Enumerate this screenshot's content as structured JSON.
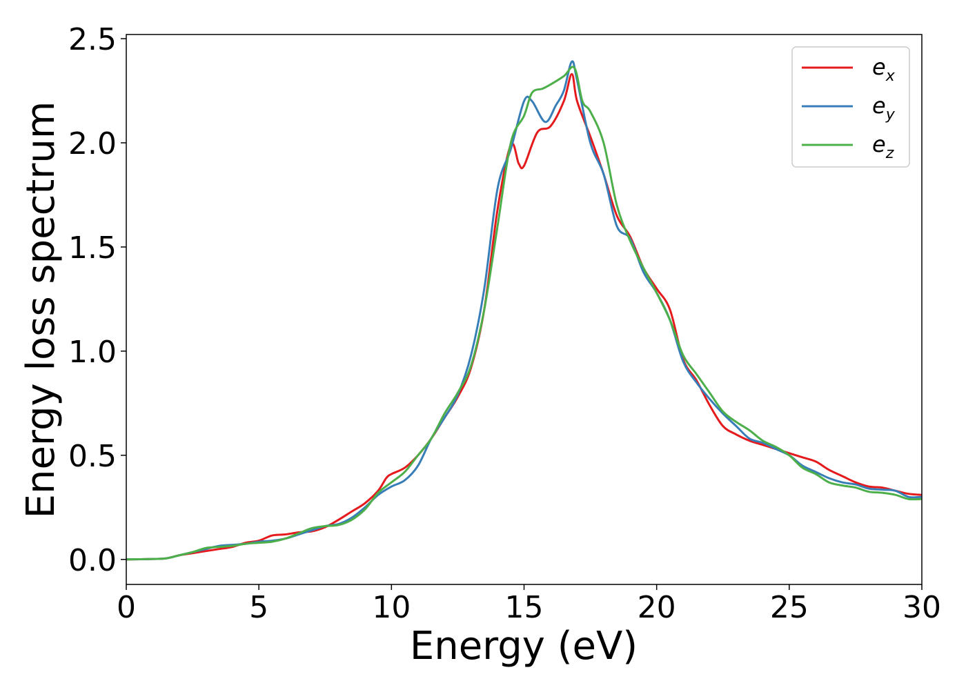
{
  "chart_data": {
    "type": "line",
    "title": "",
    "xlabel": "Energy (eV)",
    "ylabel": "Energy loss spectrum",
    "xlim": [
      0,
      30
    ],
    "ylim": [
      -0.12,
      2.52
    ],
    "xticks": [
      0,
      5,
      10,
      15,
      20,
      25,
      30
    ],
    "xtick_labels": [
      "0",
      "5",
      "10",
      "15",
      "20",
      "25",
      "30"
    ],
    "yticks": [
      0.0,
      0.5,
      1.0,
      1.5,
      2.0,
      2.5
    ],
    "ytick_labels": [
      "0.0",
      "0.5",
      "1.0",
      "1.5",
      "2.0",
      "2.5"
    ],
    "grid": false,
    "legend_position": "top-right",
    "series": [
      {
        "name": "e_x",
        "base": "e",
        "subscript": "x",
        "color": "#e41a1c",
        "points": [
          [
            0,
            0
          ],
          [
            1,
            0.002
          ],
          [
            1.5,
            0.005
          ],
          [
            2,
            0.02
          ],
          [
            2.5,
            0.03
          ],
          [
            3,
            0.04
          ],
          [
            3.5,
            0.05
          ],
          [
            4,
            0.06
          ],
          [
            4.5,
            0.08
          ],
          [
            5,
            0.09
          ],
          [
            5.5,
            0.115
          ],
          [
            6,
            0.12
          ],
          [
            6.5,
            0.13
          ],
          [
            7,
            0.135
          ],
          [
            7.5,
            0.155
          ],
          [
            8,
            0.19
          ],
          [
            8.5,
            0.23
          ],
          [
            9,
            0.27
          ],
          [
            9.5,
            0.33
          ],
          [
            9.8,
            0.39
          ],
          [
            10,
            0.41
          ],
          [
            10.5,
            0.44
          ],
          [
            11,
            0.5
          ],
          [
            11.5,
            0.58
          ],
          [
            12,
            0.68
          ],
          [
            12.5,
            0.78
          ],
          [
            13,
            0.92
          ],
          [
            13.5,
            1.2
          ],
          [
            14,
            1.68
          ],
          [
            14.5,
            1.99
          ],
          [
            14.8,
            1.9
          ],
          [
            15,
            1.89
          ],
          [
            15.5,
            2.05
          ],
          [
            16,
            2.08
          ],
          [
            16.5,
            2.2
          ],
          [
            16.8,
            2.33
          ],
          [
            17,
            2.2
          ],
          [
            17.5,
            2.03
          ],
          [
            18,
            1.85
          ],
          [
            18.5,
            1.65
          ],
          [
            19,
            1.55
          ],
          [
            19.5,
            1.4
          ],
          [
            20,
            1.3
          ],
          [
            20.5,
            1.2
          ],
          [
            21,
            0.96
          ],
          [
            21.5,
            0.86
          ],
          [
            22,
            0.74
          ],
          [
            22.5,
            0.64
          ],
          [
            23,
            0.6
          ],
          [
            23.5,
            0.57
          ],
          [
            24,
            0.55
          ],
          [
            24.5,
            0.53
          ],
          [
            25,
            0.51
          ],
          [
            25.5,
            0.49
          ],
          [
            26,
            0.47
          ],
          [
            26.5,
            0.43
          ],
          [
            27,
            0.4
          ],
          [
            27.5,
            0.37
          ],
          [
            28,
            0.35
          ],
          [
            28.5,
            0.345
          ],
          [
            29,
            0.33
          ],
          [
            29.5,
            0.315
          ],
          [
            30,
            0.31
          ]
        ]
      },
      {
        "name": "e_y",
        "base": "e",
        "subscript": "y",
        "color": "#377eb8",
        "points": [
          [
            0,
            0
          ],
          [
            1,
            0.002
          ],
          [
            1.5,
            0.005
          ],
          [
            2,
            0.02
          ],
          [
            2.5,
            0.035
          ],
          [
            3,
            0.05
          ],
          [
            3.5,
            0.065
          ],
          [
            4,
            0.07
          ],
          [
            4.5,
            0.075
          ],
          [
            5,
            0.085
          ],
          [
            5.5,
            0.09
          ],
          [
            6,
            0.1
          ],
          [
            6.5,
            0.12
          ],
          [
            7,
            0.14
          ],
          [
            7.5,
            0.16
          ],
          [
            8,
            0.17
          ],
          [
            8.5,
            0.2
          ],
          [
            9,
            0.25
          ],
          [
            9.5,
            0.31
          ],
          [
            10,
            0.35
          ],
          [
            10.5,
            0.38
          ],
          [
            11,
            0.45
          ],
          [
            11.5,
            0.58
          ],
          [
            12,
            0.68
          ],
          [
            12.5,
            0.79
          ],
          [
            13,
            0.98
          ],
          [
            13.5,
            1.3
          ],
          [
            14,
            1.78
          ],
          [
            14.5,
            1.97
          ],
          [
            15,
            2.2
          ],
          [
            15.3,
            2.2
          ],
          [
            15.8,
            2.1
          ],
          [
            16.2,
            2.18
          ],
          [
            16.5,
            2.25
          ],
          [
            16.8,
            2.39
          ],
          [
            17,
            2.3
          ],
          [
            17.5,
            2.0
          ],
          [
            18,
            1.85
          ],
          [
            18.5,
            1.6
          ],
          [
            19,
            1.54
          ],
          [
            19.5,
            1.38
          ],
          [
            20,
            1.28
          ],
          [
            20.5,
            1.15
          ],
          [
            21,
            0.95
          ],
          [
            21.5,
            0.85
          ],
          [
            22,
            0.77
          ],
          [
            22.5,
            0.7
          ],
          [
            23,
            0.64
          ],
          [
            23.5,
            0.58
          ],
          [
            24,
            0.56
          ],
          [
            24.5,
            0.53
          ],
          [
            25,
            0.5
          ],
          [
            25.5,
            0.45
          ],
          [
            26,
            0.42
          ],
          [
            26.5,
            0.39
          ],
          [
            27,
            0.37
          ],
          [
            27.5,
            0.36
          ],
          [
            28,
            0.34
          ],
          [
            28.5,
            0.335
          ],
          [
            29,
            0.33
          ],
          [
            29.5,
            0.3
          ],
          [
            30,
            0.3
          ]
        ]
      },
      {
        "name": "e_z",
        "base": "e",
        "subscript": "z",
        "color": "#4daf4a",
        "points": [
          [
            0,
            0
          ],
          [
            1,
            0.002
          ],
          [
            1.5,
            0.005
          ],
          [
            2,
            0.02
          ],
          [
            2.5,
            0.035
          ],
          [
            3,
            0.055
          ],
          [
            3.5,
            0.06
          ],
          [
            4,
            0.065
          ],
          [
            4.5,
            0.075
          ],
          [
            5,
            0.08
          ],
          [
            5.5,
            0.085
          ],
          [
            6,
            0.1
          ],
          [
            6.5,
            0.125
          ],
          [
            7,
            0.15
          ],
          [
            7.5,
            0.16
          ],
          [
            8,
            0.165
          ],
          [
            8.5,
            0.19
          ],
          [
            9,
            0.24
          ],
          [
            9.5,
            0.32
          ],
          [
            10,
            0.37
          ],
          [
            10.5,
            0.42
          ],
          [
            11,
            0.5
          ],
          [
            11.5,
            0.58
          ],
          [
            12,
            0.7
          ],
          [
            12.5,
            0.8
          ],
          [
            13,
            0.93
          ],
          [
            13.5,
            1.2
          ],
          [
            14,
            1.6
          ],
          [
            14.5,
            2.0
          ],
          [
            15,
            2.13
          ],
          [
            15.3,
            2.24
          ],
          [
            15.7,
            2.26
          ],
          [
            16,
            2.28
          ],
          [
            16.5,
            2.32
          ],
          [
            16.9,
            2.36
          ],
          [
            17.2,
            2.2
          ],
          [
            17.5,
            2.15
          ],
          [
            18,
            2.0
          ],
          [
            18.5,
            1.7
          ],
          [
            19,
            1.53
          ],
          [
            19.5,
            1.4
          ],
          [
            20,
            1.28
          ],
          [
            20.5,
            1.15
          ],
          [
            21,
            0.98
          ],
          [
            21.5,
            0.89
          ],
          [
            22,
            0.8
          ],
          [
            22.5,
            0.71
          ],
          [
            23,
            0.66
          ],
          [
            23.5,
            0.62
          ],
          [
            24,
            0.57
          ],
          [
            24.5,
            0.54
          ],
          [
            25,
            0.5
          ],
          [
            25.5,
            0.44
          ],
          [
            26,
            0.41
          ],
          [
            26.5,
            0.37
          ],
          [
            27,
            0.355
          ],
          [
            27.5,
            0.345
          ],
          [
            28,
            0.325
          ],
          [
            28.5,
            0.32
          ],
          [
            29,
            0.31
          ],
          [
            29.5,
            0.29
          ],
          [
            30,
            0.29
          ]
        ]
      }
    ]
  }
}
